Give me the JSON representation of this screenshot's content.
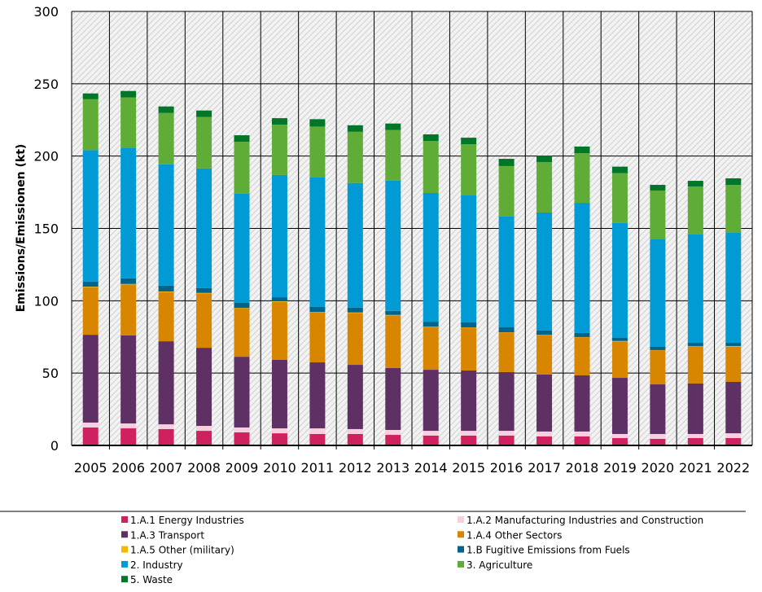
{
  "chart_data": {
    "type": "bar",
    "stacked": true,
    "title": "",
    "xlabel": "",
    "ylabel": "Emissions/Emissionen (kt)",
    "ylim": [
      0,
      300
    ],
    "yticks": [
      0,
      50,
      100,
      150,
      200,
      250,
      300
    ],
    "grid": true,
    "legend_position": "bottom",
    "categories": [
      "2005",
      "2006",
      "2007",
      "2008",
      "2009",
      "2010",
      "2011",
      "2012",
      "2013",
      "2014",
      "2015",
      "2016",
      "2017",
      "2018",
      "2019",
      "2020",
      "2021",
      "2022"
    ],
    "series": [
      {
        "name": "1.A.1 Energy Industries",
        "color": "#cf2160",
        "values": [
          12.4,
          11.8,
          11.3,
          10.1,
          9.0,
          8.4,
          7.9,
          7.9,
          7.3,
          6.8,
          6.8,
          6.8,
          6.2,
          6.2,
          5.1,
          4.5,
          5.1,
          5.1
        ]
      },
      {
        "name": "1.A.2 Manufacturing Industries and Construction",
        "color": "#f7cfdf",
        "values": [
          3.4,
          3.4,
          3.3,
          3.4,
          3.4,
          3.4,
          3.9,
          3.4,
          3.4,
          3.3,
          3.3,
          3.3,
          3.4,
          3.4,
          2.8,
          3.4,
          2.8,
          3.3
        ]
      },
      {
        "name": "1.A.3 Transport",
        "color": "#5f3063",
        "values": [
          60.7,
          60.8,
          57.4,
          54.0,
          48.9,
          47.3,
          45.6,
          44.4,
          42.8,
          42.2,
          41.7,
          40.6,
          39.4,
          38.8,
          38.8,
          34.3,
          34.9,
          35.5
        ]
      },
      {
        "name": "1.A.4 Other Sectors",
        "color": "#d88600",
        "values": [
          32.8,
          35.2,
          34.0,
          37.5,
          33.7,
          40.1,
          34.8,
          35.8,
          36.3,
          29.8,
          29.7,
          27.4,
          27.4,
          26.4,
          25.1,
          23.6,
          25.8,
          24.4
        ]
      },
      {
        "name": "1.A.5 Other (military)",
        "color": "#f5b800",
        "values": [
          0.4,
          0.4,
          0.4,
          0.4,
          0.1,
          0.4,
          0.1,
          0.4,
          0.4,
          0.1,
          0.1,
          0.1,
          0.1,
          0.1,
          0.4,
          0.1,
          0.1,
          0.4
        ]
      },
      {
        "name": "1.B Fugitive Emissions from Fuels",
        "color": "#00648a",
        "values": [
          3.6,
          3.9,
          4.1,
          3.4,
          3.4,
          2.8,
          3.4,
          3.4,
          2.8,
          3.3,
          3.4,
          3.4,
          2.9,
          2.8,
          2.3,
          2.2,
          2.2,
          2.2
        ]
      },
      {
        "name": "2. Industry",
        "color": "#009bd4",
        "values": [
          90.8,
          90.3,
          83.8,
          82.7,
          75.6,
          84.5,
          89.5,
          86.1,
          90.1,
          89.0,
          87.8,
          76.6,
          81.6,
          90.0,
          79.3,
          74.3,
          74.9,
          76.0
        ]
      },
      {
        "name": "3. Agriculture",
        "color": "#5fac37",
        "values": [
          35.2,
          34.7,
          35.5,
          35.5,
          35.8,
          34.8,
          35.2,
          35.4,
          34.9,
          36.0,
          35.4,
          34.9,
          34.9,
          34.3,
          34.4,
          33.8,
          33.2,
          33.2
        ]
      },
      {
        "name": "5. Waste",
        "color": "#007629",
        "values": [
          4.0,
          4.5,
          4.5,
          4.5,
          4.5,
          4.5,
          5.1,
          4.5,
          4.5,
          4.5,
          4.5,
          5.0,
          4.3,
          4.6,
          4.5,
          3.9,
          3.9,
          4.5
        ]
      }
    ]
  }
}
